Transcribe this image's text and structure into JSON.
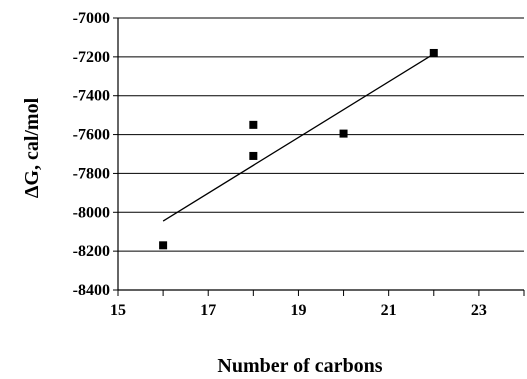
{
  "chart_data": {
    "type": "scatter",
    "title": "",
    "xlabel": "Number of carbons",
    "ylabel": "ΔG, cal/mol",
    "xlim": [
      15,
      24
    ],
    "ylim": [
      -8400,
      -7000
    ],
    "x_ticks": [
      15,
      17,
      19,
      21,
      23
    ],
    "y_ticks": [
      -7000,
      -7200,
      -7400,
      -7600,
      -7800,
      -8000,
      -8200,
      -8400
    ],
    "x_tick_labels": [
      "15",
      "17",
      "19",
      "21",
      "23"
    ],
    "y_tick_labels": [
      "-7000",
      "-7200",
      "-7400",
      "-7600",
      "-7800",
      "-8000",
      "-8200",
      "-8400"
    ],
    "grid": "horizontal",
    "legend": "none",
    "series": [
      {
        "points": [
          {
            "x": 16,
            "y": -8170
          },
          {
            "x": 18,
            "y": -7550
          },
          {
            "x": 18,
            "y": -7710
          },
          {
            "x": 20,
            "y": -7595
          },
          {
            "x": 22,
            "y": -7180
          }
        ],
        "marker": "square",
        "color": "#000000"
      }
    ],
    "trendline": {
      "x": [
        16,
        22
      ],
      "y": [
        -8045,
        -7185
      ],
      "color": "#000000"
    }
  }
}
